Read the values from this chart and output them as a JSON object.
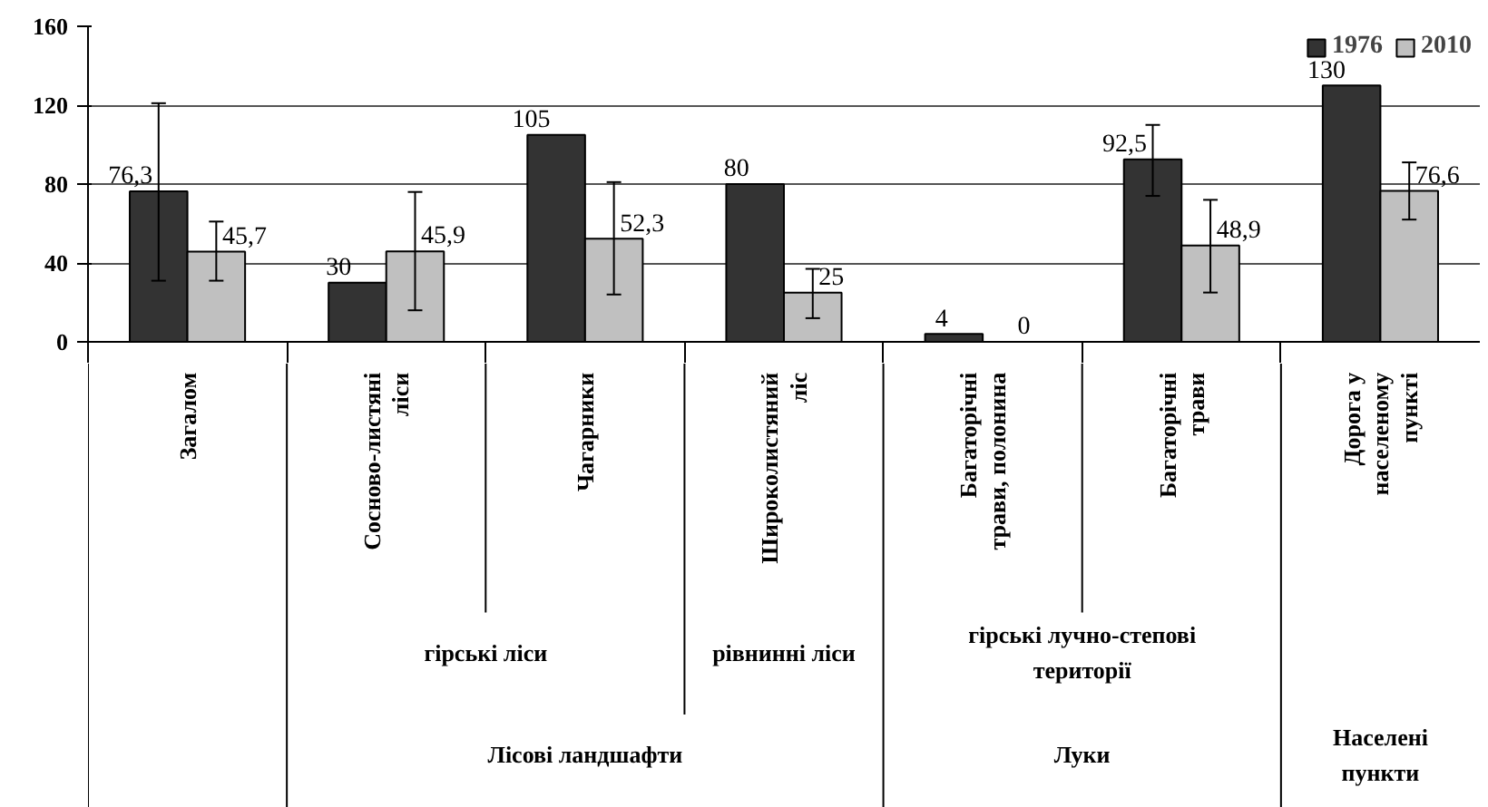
{
  "chart_data": {
    "type": "bar",
    "categories": [
      "Загалом",
      "Сосново-листяні ліси",
      "Чагарники",
      "Широколистяний ліс",
      "Багаторічні трави, полонина",
      "Багаторічні трави",
      "Дорога у населеному пункті"
    ],
    "series": [
      {
        "name": "1976",
        "color": "#333333",
        "values": [
          76.3,
          30,
          105,
          80,
          4,
          92.5,
          130
        ],
        "value_labels": [
          "76,3",
          "30",
          "105",
          "80",
          "4",
          "92,5",
          "130"
        ],
        "errors": [
          [
            31,
            121
          ],
          null,
          null,
          null,
          null,
          [
            74,
            110
          ],
          null
        ]
      },
      {
        "name": "2010",
        "color": "#c0c0c0",
        "values": [
          45.7,
          45.9,
          52.3,
          25,
          0,
          48.9,
          76.6
        ],
        "value_labels": [
          "45,7",
          "45,9",
          "52,3",
          "25",
          "0",
          "48,9",
          "76,6"
        ],
        "errors": [
          [
            31,
            61
          ],
          [
            16,
            76
          ],
          [
            24,
            81
          ],
          [
            12,
            37
          ],
          null,
          [
            25,
            72
          ],
          [
            62,
            91
          ]
        ]
      }
    ],
    "ylim": [
      0,
      160
    ],
    "yticks": [
      0,
      40,
      80,
      120,
      160
    ],
    "grid": "y",
    "legend": "top right",
    "annotations": [
      "гірські ліси",
      "рівнинні ліси",
      "гірські лучно-степові території",
      "Лісові ландшафти",
      "Луки",
      "Населені пункти"
    ]
  }
}
